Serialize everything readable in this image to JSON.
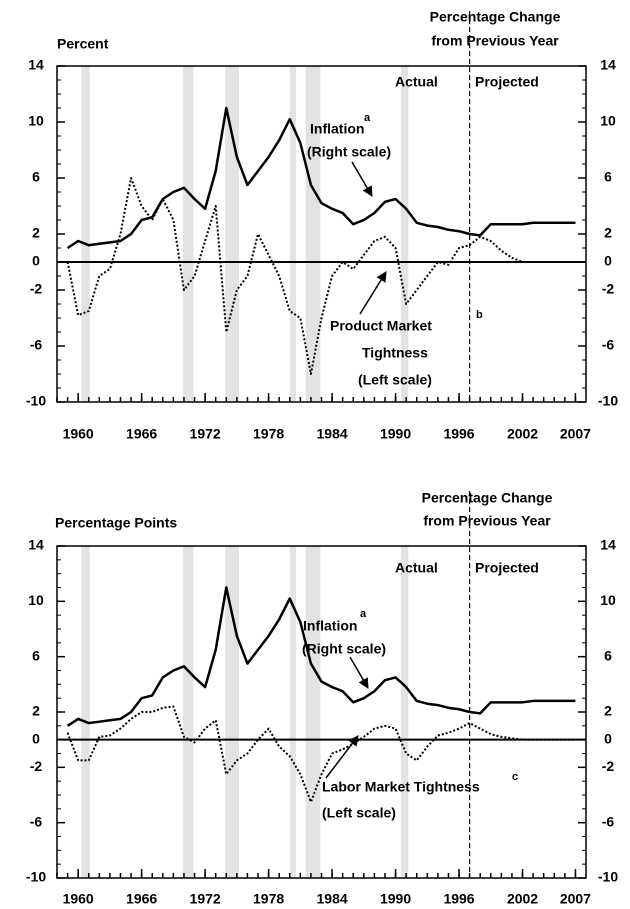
{
  "chart_data": [
    {
      "type": "line",
      "y_label": "Percent",
      "y2_label": [
        "Percentage Change",
        "from Previous Year"
      ],
      "x": [
        1959,
        1960,
        1961,
        1962,
        1963,
        1964,
        1965,
        1966,
        1967,
        1968,
        1969,
        1970,
        1971,
        1972,
        1973,
        1974,
        1975,
        1976,
        1977,
        1978,
        1979,
        1980,
        1981,
        1982,
        1983,
        1984,
        1985,
        1986,
        1987,
        1988,
        1989,
        1990,
        1991,
        1992,
        1993,
        1994,
        1995,
        1996,
        1997,
        1998,
        1999,
        2000,
        2001,
        2002,
        2003,
        2004,
        2005,
        2006,
        2007
      ],
      "xlim": [
        1958,
        2008
      ],
      "xticks": [
        1960,
        1966,
        1972,
        1978,
        1984,
        1990,
        1996,
        2002,
        2007
      ],
      "ylim": [
        -10,
        14
      ],
      "yticks": [
        -10,
        -6,
        -2,
        0,
        2,
        6,
        10,
        14
      ],
      "y2lim": [
        -10,
        14
      ],
      "y2ticks": [
        -10,
        -6,
        -2,
        0,
        2,
        6,
        10,
        14
      ],
      "projection_start": 1997,
      "shaded_periods": [
        [
          1960.3,
          1961.1
        ],
        [
          1969.9,
          1970.9
        ],
        [
          1973.9,
          1975.2
        ],
        [
          1980.0,
          1980.6
        ],
        [
          1981.5,
          1982.9
        ],
        [
          1990.5,
          1991.2
        ]
      ],
      "series": [
        {
          "color": "#000000",
          "style": "solid",
          "axis": "y2",
          "values": [
            1.0,
            1.5,
            1.2,
            1.3,
            1.4,
            1.5,
            2.0,
            3.0,
            3.2,
            4.5,
            5.0,
            5.3,
            4.5,
            3.8,
            6.5,
            11.0,
            7.5,
            5.5,
            6.5,
            7.5,
            8.7,
            10.2,
            8.5,
            5.5,
            4.2,
            3.8,
            3.5,
            2.7,
            3.0,
            3.5,
            4.3,
            4.5,
            3.8,
            2.8,
            2.6,
            2.5,
            2.3,
            2.2,
            2.0,
            1.9,
            2.7,
            2.7,
            2.7,
            2.7,
            2.8,
            2.8,
            2.8,
            2.8,
            2.8
          ]
        },
        {
          "color": "#000000",
          "style": "dotted",
          "values": [
            0,
            -3.8,
            -3.5,
            -1,
            -0.5,
            2,
            6,
            4,
            3,
            4.5,
            3,
            -2,
            -1,
            1.5,
            4,
            -5,
            -2,
            -1,
            2,
            0.5,
            -1,
            -3.5,
            -4,
            -8,
            -4,
            -1,
            0,
            -0.5,
            0.5,
            1.5,
            1.8,
            1,
            -3,
            -2,
            -1,
            0,
            -0.2,
            1,
            1.2,
            1.8,
            1.5,
            0.8,
            0.3,
            0,
            0,
            0,
            0,
            0,
            0
          ]
        }
      ],
      "annotations": [
        "Actual",
        "Projected",
        "Inflation",
        "a",
        "(Right scale)",
        "Product Market",
        "b",
        "Tightness",
        "(Left scale)"
      ]
    },
    {
      "type": "line",
      "y_label": "Percentage Points",
      "y2_label": [
        "Percentage Change",
        "from Previous Year"
      ],
      "x": [
        1959,
        1960,
        1961,
        1962,
        1963,
        1964,
        1965,
        1966,
        1967,
        1968,
        1969,
        1970,
        1971,
        1972,
        1973,
        1974,
        1975,
        1976,
        1977,
        1978,
        1979,
        1980,
        1981,
        1982,
        1983,
        1984,
        1985,
        1986,
        1987,
        1988,
        1989,
        1990,
        1991,
        1992,
        1993,
        1994,
        1995,
        1996,
        1997,
        1998,
        1999,
        2000,
        2001,
        2002,
        2003,
        2004,
        2005,
        2006,
        2007
      ],
      "xlim": [
        1958,
        2008
      ],
      "xticks": [
        1960,
        1966,
        1972,
        1978,
        1984,
        1990,
        1996,
        2002,
        2007
      ],
      "ylim": [
        -10,
        14
      ],
      "yticks": [
        -10,
        -6,
        -2,
        0,
        2,
        6,
        10,
        14
      ],
      "y2lim": [
        -10,
        14
      ],
      "y2ticks": [
        -10,
        -6,
        -2,
        0,
        2,
        6,
        10,
        14
      ],
      "projection_start": 1997,
      "shaded_periods": [
        [
          1960.3,
          1961.1
        ],
        [
          1969.9,
          1970.9
        ],
        [
          1973.9,
          1975.2
        ],
        [
          1980.0,
          1980.6
        ],
        [
          1981.5,
          1982.9
        ],
        [
          1990.5,
          1991.2
        ]
      ],
      "series": [
        {
          "color": "#000000",
          "style": "solid",
          "axis": "y2",
          "values": [
            1.0,
            1.5,
            1.2,
            1.3,
            1.4,
            1.5,
            2.0,
            3.0,
            3.2,
            4.5,
            5.0,
            5.3,
            4.5,
            3.8,
            6.5,
            11.0,
            7.5,
            5.5,
            6.5,
            7.5,
            8.7,
            10.2,
            8.5,
            5.5,
            4.2,
            3.8,
            3.5,
            2.7,
            3.0,
            3.5,
            4.3,
            4.5,
            3.8,
            2.8,
            2.6,
            2.5,
            2.3,
            2.2,
            2.0,
            1.9,
            2.7,
            2.7,
            2.7,
            2.7,
            2.8,
            2.8,
            2.8,
            2.8,
            2.8
          ]
        },
        {
          "color": "#000000",
          "style": "dotted",
          "values": [
            0.5,
            -1.5,
            -1.5,
            0.2,
            0.3,
            0.8,
            1.5,
            2,
            2,
            2.3,
            2.4,
            0.2,
            -0.2,
            0.8,
            1.4,
            -2.5,
            -1.5,
            -1,
            0,
            0.8,
            -0.5,
            -1.2,
            -2.5,
            -4.5,
            -2.5,
            -1,
            -0.7,
            -0.3,
            0.2,
            0.8,
            1,
            0.8,
            -1,
            -1.5,
            -0.5,
            0.3,
            0.5,
            0.8,
            1.2,
            0.8,
            0.4,
            0.2,
            0.1,
            0,
            0,
            0,
            0,
            0,
            0
          ]
        }
      ],
      "annotations": [
        "Actual",
        "Projected",
        "Inflation",
        "a",
        "(Right scale)",
        "Labor Market Tightness",
        "c",
        "(Left scale)"
      ]
    }
  ]
}
